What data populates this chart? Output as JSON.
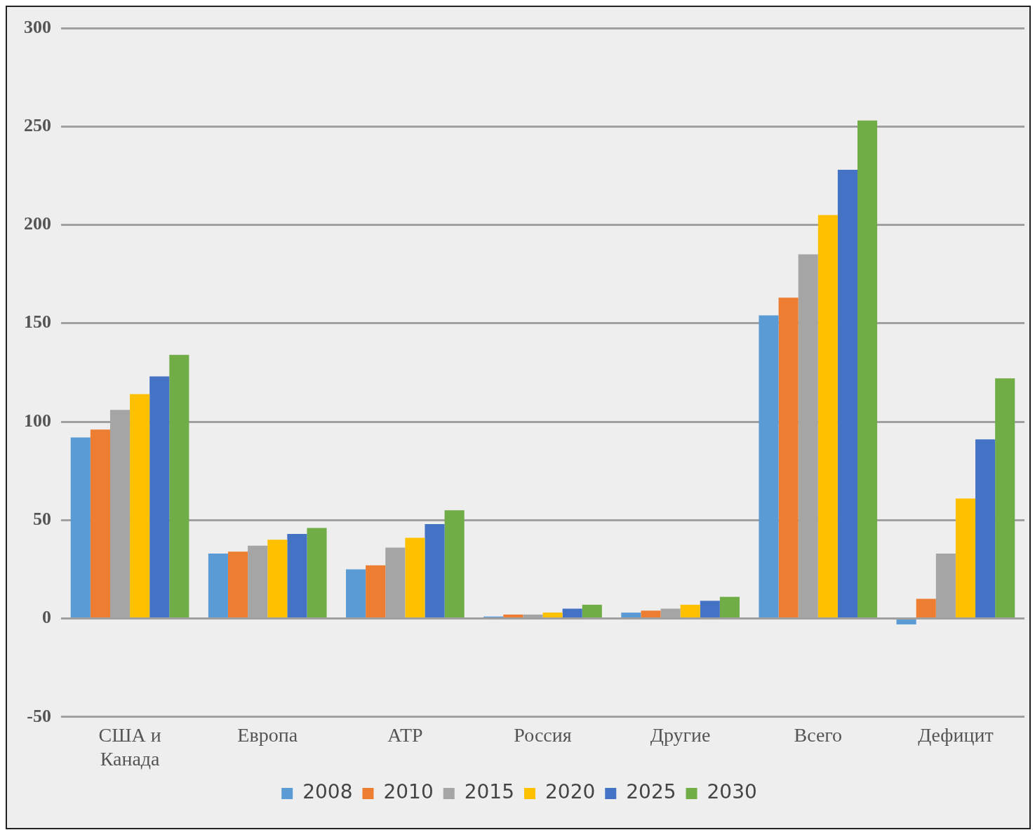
{
  "chart_data": {
    "type": "bar",
    "categories": [
      "США и\nКанада",
      "Европа",
      "АТР",
      "Россия",
      "Другие",
      "Всего",
      "Дефицит"
    ],
    "series": [
      {
        "name": "2008",
        "color": "#5b9bd5",
        "values": [
          92,
          33,
          25,
          1,
          3,
          154,
          -3
        ]
      },
      {
        "name": "2010",
        "color": "#ed7d31",
        "values": [
          96,
          34,
          27,
          2,
          4,
          163,
          10
        ]
      },
      {
        "name": "2015",
        "color": "#a5a5a5",
        "values": [
          106,
          37,
          36,
          2,
          5,
          185,
          33
        ]
      },
      {
        "name": "2020",
        "color": "#ffc000",
        "values": [
          114,
          40,
          41,
          3,
          7,
          205,
          61
        ]
      },
      {
        "name": "2025",
        "color": "#4472c4",
        "values": [
          123,
          43,
          48,
          5,
          9,
          228,
          91
        ]
      },
      {
        "name": "2030",
        "color": "#70ad47",
        "values": [
          134,
          46,
          55,
          7,
          11,
          253,
          122
        ]
      }
    ],
    "ylim": [
      -50,
      300
    ],
    "yticks": [
      -50,
      0,
      50,
      100,
      150,
      200,
      250,
      300
    ],
    "grid": "y",
    "legend": "bottom"
  }
}
